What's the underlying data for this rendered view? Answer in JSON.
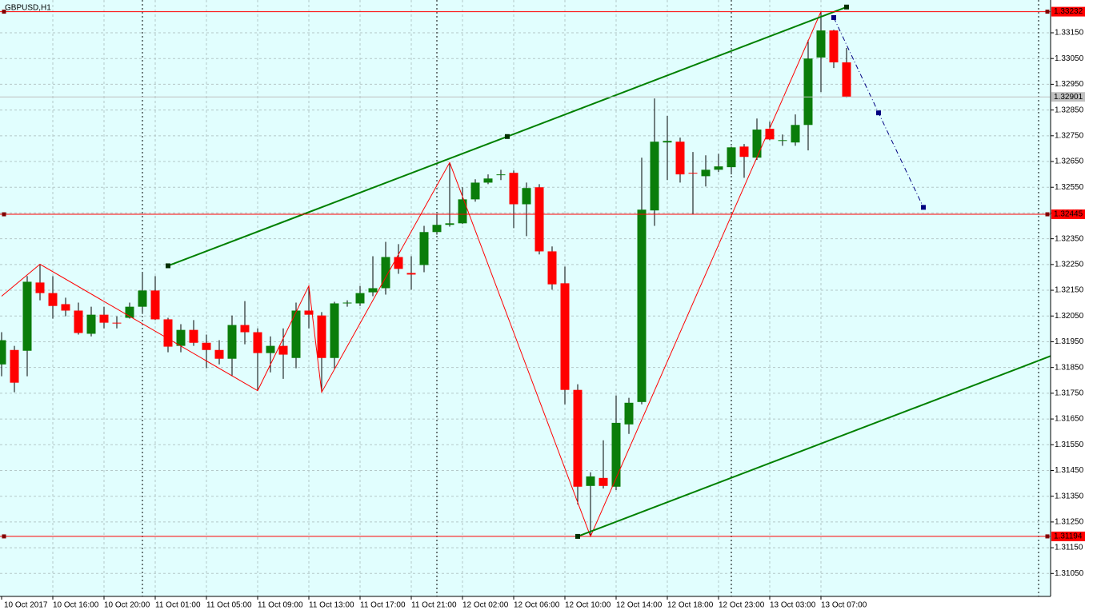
{
  "chart_data": {
    "type": "candlestick",
    "title": "GBPUSD,H1",
    "categories": [
      "10 Oct 2017",
      null,
      null,
      null,
      "10 Oct 16:00",
      null,
      null,
      null,
      "10 Oct 20:00",
      null,
      null,
      null,
      "11 Oct 01:00",
      null,
      null,
      null,
      "11 Oct 05:00",
      null,
      null,
      null,
      "11 Oct 09:00",
      null,
      null,
      null,
      "11 Oct 13:00",
      null,
      null,
      null,
      "11 Oct 17:00",
      null,
      null,
      null,
      "11 Oct 21:00",
      null,
      null,
      null,
      "12 Oct 02:00",
      null,
      null,
      null,
      "12 Oct 06:00",
      null,
      null,
      null,
      "12 Oct 10:00",
      null,
      null,
      null,
      "12 Oct 14:00",
      null,
      null,
      null,
      "12 Oct 18:00",
      null,
      null,
      null,
      "12 Oct 23:00",
      null,
      null,
      null,
      "13 Oct 03:00",
      null,
      null,
      null,
      "13 Oct 07:00",
      null,
      null
    ],
    "open": [
      1.31862,
      1.31918,
      1.31915,
      1.3218,
      1.32139,
      1.32096,
      1.32071,
      1.31981,
      1.32055,
      1.32024,
      1.32043,
      1.32086,
      1.32149,
      1.32037,
      1.31934,
      1.31996,
      1.31946,
      1.31918,
      1.31884,
      1.32015,
      1.31987,
      1.31906,
      1.31934,
      1.31887,
      1.32071,
      1.32052,
      1.31887,
      1.32099,
      1.32099,
      1.32142,
      1.32158,
      1.32279,
      1.32217,
      1.32248,
      1.32376,
      1.32404,
      1.3241,
      1.32503,
      1.32568,
      1.326,
      1.32606,
      1.32484,
      1.3255,
      1.32301,
      1.32177,
      1.31763,
      1.3139,
      1.31421,
      1.31387,
      1.31629,
      1.31716,
      1.3246,
      1.32724,
      1.32727,
      1.32606,
      1.32593,
      1.32618,
      1.32628,
      1.32708,
      1.32665,
      1.32777,
      1.32733,
      1.32724,
      1.32792,
      1.33054,
      1.33159,
      1.33035
    ],
    "high": [
      1.31987,
      1.31934,
      1.32205,
      1.32251,
      1.32205,
      1.32121,
      1.32102,
      1.32086,
      1.32086,
      1.32049,
      1.32102,
      1.3222,
      1.32205,
      1.32043,
      1.32018,
      1.32034,
      1.31978,
      1.31956,
      1.32052,
      1.32108,
      1.32002,
      1.31971,
      1.32002,
      1.32102,
      1.32167,
      1.32065,
      1.32105,
      1.32111,
      1.32167,
      1.32282,
      1.32338,
      1.32329,
      1.32282,
      1.324,
      1.32444,
      1.32646,
      1.3255,
      1.32581,
      1.326,
      1.32618,
      1.32615,
      1.32568,
      1.32562,
      1.3232,
      1.32242,
      1.31785,
      1.31443,
      1.31567,
      1.31741,
      1.31732,
      1.32665,
      1.32895,
      1.32827,
      1.32743,
      1.32687,
      1.32674,
      1.3268,
      1.32708,
      1.32718,
      1.32817,
      1.32805,
      1.32755,
      1.32833,
      1.33122,
      1.33232,
      1.33162,
      1.33091
    ],
    "low": [
      1.31816,
      1.31754,
      1.31816,
      1.32111,
      1.3204,
      1.32049,
      1.31978,
      1.31971,
      1.32002,
      1.32002,
      1.3204,
      1.32058,
      1.32034,
      1.31909,
      1.31909,
      1.31934,
      1.31847,
      1.31862,
      1.31816,
      1.3194,
      1.3176,
      1.31831,
      1.31806,
      1.31847,
      1.32002,
      1.31754,
      1.31847,
      1.32086,
      1.32089,
      1.32127,
      1.32133,
      1.32214,
      1.32152,
      1.3222,
      1.32366,
      1.32397,
      1.32407,
      1.32494,
      1.32562,
      1.32578,
      1.32391,
      1.3236,
      1.32289,
      1.32152,
      1.31707,
      1.31318,
      1.31194,
      1.3138,
      1.31374,
      1.31592,
      1.31707,
      1.324,
      1.32578,
      1.32568,
      1.32444,
      1.32553,
      1.32609,
      1.326,
      1.32587,
      1.32656,
      1.32733,
      1.32711,
      1.32711,
      1.32693,
      1.3292,
      1.33013,
      1.32898
    ],
    "close": [
      1.31956,
      1.31791,
      1.32183,
      1.32139,
      1.32089,
      1.32071,
      1.31984,
      1.32055,
      1.32024,
      1.32021,
      1.32086,
      1.32149,
      1.32037,
      1.31931,
      1.31996,
      1.31946,
      1.31918,
      1.31884,
      1.32015,
      1.31987,
      1.31906,
      1.31934,
      1.319,
      1.32071,
      1.32055,
      1.31887,
      1.32099,
      1.32102,
      1.32139,
      1.32158,
      1.32279,
      1.32233,
      1.32211,
      1.32376,
      1.32404,
      1.3241,
      1.32503,
      1.32568,
      1.32584,
      1.326,
      1.32484,
      1.32547,
      1.32301,
      1.32173,
      1.31763,
      1.31387,
      1.31427,
      1.3139,
      1.31635,
      1.31713,
      1.32463,
      1.32727,
      1.3273,
      1.326,
      1.32603,
      1.32618,
      1.32631,
      1.32705,
      1.32668,
      1.32774,
      1.32736,
      1.32733,
      1.32792,
      1.3305,
      1.33159,
      1.33035,
      1.32901
    ],
    "up_color": "#0a7d0a",
    "down_color": "#ff0000",
    "wick_color": "#000000",
    "ylim": [
      1.30964,
      1.33268
    ],
    "yticks": [
      {
        "value": 1.3315,
        "label": "1.33150"
      },
      {
        "value": 1.3305,
        "label": "1.33050"
      },
      {
        "value": 1.3295,
        "label": "1.32950"
      },
      {
        "value": 1.3285,
        "label": "1.32850"
      },
      {
        "value": 1.3275,
        "label": "1.32750"
      },
      {
        "value": 1.3265,
        "label": "1.32650"
      },
      {
        "value": 1.3255,
        "label": "1.32550"
      },
      {
        "value": 1.3245,
        "label": "1.32450"
      },
      {
        "value": 1.3235,
        "label": "1.32350"
      },
      {
        "value": 1.3225,
        "label": "1.32250"
      },
      {
        "value": 1.3215,
        "label": "1.32150"
      },
      {
        "value": 1.3205,
        "label": "1.32050"
      },
      {
        "value": 1.3195,
        "label": "1.31950"
      },
      {
        "value": 1.3185,
        "label": "1.31850"
      },
      {
        "value": 1.3175,
        "label": "1.31750"
      },
      {
        "value": 1.3165,
        "label": "1.31650"
      },
      {
        "value": 1.3155,
        "label": "1.31550"
      },
      {
        "value": 1.3145,
        "label": "1.31450"
      },
      {
        "value": 1.3135,
        "label": "1.31350"
      },
      {
        "value": 1.3125,
        "label": "1.31250"
      },
      {
        "value": 1.3115,
        "label": "1.31150"
      },
      {
        "value": 1.3105,
        "label": "1.31050"
      }
    ],
    "grid": true,
    "day_separators": [
      11,
      34,
      57
    ],
    "price_lines": [
      1.33232,
      1.32445,
      1.31194
    ],
    "price_line_color": "#ff0000",
    "bid": 1.32901,
    "bid_color": "#c0c0c0",
    "zigzag": {
      "x": [
        0,
        3,
        20,
        24,
        25,
        35,
        46,
        64
      ],
      "values": [
        1.32127,
        1.32251,
        1.3176,
        1.32167,
        1.31754,
        1.32646,
        1.31194,
        1.33232
      ],
      "color": "#ff0000"
    },
    "channel": {
      "x": [
        13,
        39.5,
        66
      ],
      "values": [
        1.32245,
        1.32747,
        1.3325
      ],
      "parallel_x": 45,
      "parallel_value": 1.31194,
      "color": "#008000"
    },
    "projection": {
      "x": [
        65,
        68.5,
        72
      ],
      "values": [
        1.33209,
        1.32839,
        1.32472
      ],
      "color": "#000080"
    }
  }
}
